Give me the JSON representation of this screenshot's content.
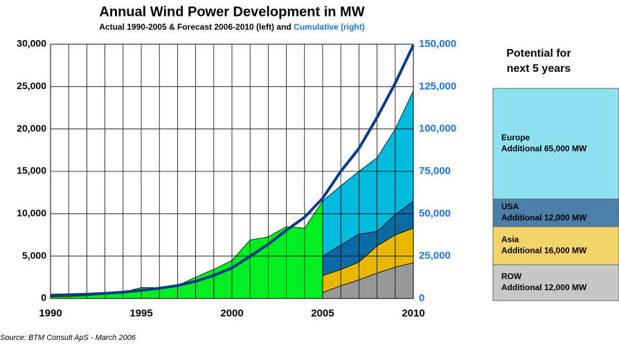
{
  "chart_data": {
    "type": "area",
    "title": "Annual Wind Power Development in MW",
    "subtitle": "Actual 1990-2005 & Forecast 2006-2010 (left) and ",
    "subtitle_right": "Cumulative (right)",
    "x": [
      1990,
      1991,
      1992,
      1993,
      1994,
      1995,
      1996,
      1997,
      1998,
      1999,
      2000,
      2001,
      2002,
      2003,
      2004,
      2005,
      2006,
      2007,
      2008,
      2009,
      2010
    ],
    "xlim": [
      1990,
      2010
    ],
    "xticks": [
      1990,
      1995,
      2000,
      2005,
      2010
    ],
    "ylim": [
      0,
      30000
    ],
    "yticks": [
      0,
      {
        "value": 5000,
        "label": "5,000"
      },
      {
        "value": 10000,
        "label": "10,000"
      },
      {
        "value": 15000,
        "label": "15,000"
      },
      {
        "value": 20000,
        "label": "20,000"
      },
      {
        "value": 25000,
        "label": "25,000"
      },
      {
        "value": 30000,
        "label": "30,000"
      }
    ],
    "y2lim": [
      0,
      150000
    ],
    "y2ticks": [
      0,
      {
        "value": 25000,
        "label": "25,000"
      },
      {
        "value": 50000,
        "label": "50,000"
      },
      {
        "value": 75000,
        "label": "75,000"
      },
      {
        "value": 100000,
        "label": "100,000"
      },
      {
        "value": 125000,
        "label": "125,000"
      },
      {
        "value": 150000,
        "label": "150,000"
      }
    ],
    "grid": true,
    "series": [
      {
        "color": "#00ee22",
        "values": [
          200,
          240,
          340,
          480,
          730,
          1290,
          1280,
          1530,
          2520,
          3440,
          4500,
          6900,
          7270,
          8480,
          8300,
          11500,
          null,
          null,
          null,
          null,
          null
        ]
      },
      {
        "name": "ROW",
        "color": "#999999",
        "stack": true,
        "values": [
          null,
          null,
          null,
          null,
          null,
          null,
          null,
          null,
          null,
          null,
          null,
          null,
          null,
          null,
          null,
          700,
          1500,
          2200,
          3000,
          3700,
          4200
        ]
      },
      {
        "name": "Asia",
        "color": "#e8b800",
        "stack": true,
        "values": [
          null,
          null,
          null,
          null,
          null,
          null,
          null,
          null,
          null,
          null,
          null,
          null,
          null,
          null,
          null,
          2000,
          1900,
          2100,
          3200,
          3800,
          4100
        ]
      },
      {
        "name": "USA",
        "color": "#0a6aa5",
        "stack": true,
        "values": [
          null,
          null,
          null,
          null,
          null,
          null,
          null,
          null,
          null,
          null,
          null,
          null,
          null,
          null,
          null,
          2300,
          2900,
          3300,
          1700,
          2400,
          3200
        ]
      },
      {
        "name": "Europe",
        "color": "#00bbdd",
        "stack": true,
        "values": [
          null,
          null,
          null,
          null,
          null,
          null,
          null,
          null,
          null,
          null,
          null,
          null,
          null,
          null,
          null,
          6500,
          7000,
          7400,
          8700,
          10100,
          13000
        ]
      },
      {
        "axis": "y2",
        "color": "#0a3a8a",
        "line": true,
        "values": [
          1930,
          2170,
          2510,
          2990,
          3730,
          4780,
          6070,
          7640,
          10150,
          13600,
          18000,
          24900,
          32000,
          40300,
          47900,
          59100,
          75000,
          88500,
          106800,
          127000,
          149500
        ]
      }
    ],
    "panel_title": [
      "Potential for",
      "next 5 years"
    ],
    "potential": [
      {
        "series": 4,
        "text": "Additional 65,000 MW",
        "color": "#8fe0f0"
      },
      {
        "series": 3,
        "text": "Additional 12,000 MW",
        "color": "#4a7fa8"
      },
      {
        "series": 2,
        "text": "Additional 16,000 MW",
        "color": "#f2d46a"
      },
      {
        "series": 1,
        "text": "Additional 12,000 MW",
        "color": "#c8c8c8"
      }
    ],
    "source": "Source: BTM Consult ApS - March 2006"
  }
}
